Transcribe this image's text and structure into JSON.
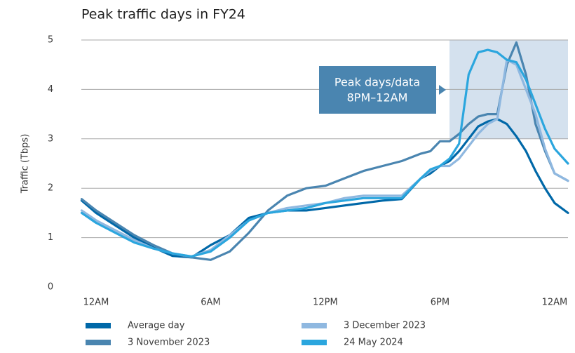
{
  "chart_data": {
    "type": "line",
    "title": "Peak traffic days in FY24",
    "y_label": "Traffic (Tbps)",
    "x": [
      -0.75,
      0,
      1,
      2,
      3,
      4,
      5,
      6,
      7,
      8,
      9,
      10,
      11,
      12,
      13,
      14,
      15,
      16,
      17,
      17.5,
      18,
      18.5,
      19,
      19.5,
      20,
      20.5,
      21,
      21.5,
      22,
      22.5,
      23,
      23.5,
      24,
      24.7
    ],
    "xlim": [
      -0.77,
      24.7
    ],
    "xticks": [
      {
        "value": 0,
        "label": "12AM"
      },
      {
        "value": 6,
        "label": "6AM"
      },
      {
        "value": 12,
        "label": "12PM"
      },
      {
        "value": 18,
        "label": "6PM"
      },
      {
        "value": 24,
        "label": "12AM"
      }
    ],
    "ylim": [
      0,
      5
    ],
    "yticks": [
      0,
      1,
      2,
      3,
      4,
      5
    ],
    "grid": true,
    "series": [
      {
        "name": "Average day",
        "color": "#0068a8",
        "values": [
          1.75,
          1.5,
          1.25,
          1.0,
          0.8,
          0.63,
          0.6,
          0.85,
          1.05,
          1.4,
          1.5,
          1.55,
          1.55,
          1.6,
          1.65,
          1.7,
          1.75,
          1.78,
          2.2,
          2.3,
          2.45,
          2.55,
          2.75,
          3.0,
          3.25,
          3.35,
          3.4,
          3.3,
          3.05,
          2.75,
          2.35,
          2.0,
          1.7,
          1.5
        ]
      },
      {
        "name": "3 November 2023",
        "color": "#4a85b0",
        "values": [
          1.78,
          1.55,
          1.3,
          1.05,
          0.85,
          0.68,
          0.6,
          0.55,
          0.72,
          1.1,
          1.55,
          1.85,
          2.0,
          2.05,
          2.2,
          2.35,
          2.45,
          2.55,
          2.7,
          2.75,
          2.95,
          2.95,
          3.1,
          3.3,
          3.45,
          3.5,
          3.5,
          4.5,
          4.95,
          4.3,
          3.3,
          2.75,
          2.3,
          2.15
        ]
      },
      {
        "name": "3 December 2023",
        "color": "#8fb8e0",
        "values": [
          1.55,
          1.35,
          1.15,
          0.95,
          0.78,
          0.68,
          0.62,
          0.75,
          1.05,
          1.35,
          1.5,
          1.6,
          1.65,
          1.7,
          1.8,
          1.85,
          1.85,
          1.85,
          2.2,
          2.35,
          2.45,
          2.45,
          2.6,
          2.85,
          3.1,
          3.3,
          3.4,
          4.6,
          4.5,
          4.0,
          3.5,
          2.8,
          2.3,
          2.15
        ]
      },
      {
        "name": "24 May 2024",
        "color": "#2ba6de",
        "values": [
          1.5,
          1.3,
          1.1,
          0.9,
          0.78,
          0.68,
          0.62,
          0.72,
          1.0,
          1.35,
          1.5,
          1.55,
          1.6,
          1.7,
          1.75,
          1.8,
          1.8,
          1.8,
          2.2,
          2.38,
          2.45,
          2.6,
          2.9,
          4.3,
          4.75,
          4.8,
          4.75,
          4.6,
          4.55,
          4.2,
          3.7,
          3.2,
          2.8,
          2.5
        ]
      }
    ],
    "annotation": {
      "lines": [
        "Peak days/data",
        "8PM–12AM"
      ],
      "x": [
        18.5,
        24.7
      ],
      "y": [
        3,
        5
      ]
    }
  }
}
